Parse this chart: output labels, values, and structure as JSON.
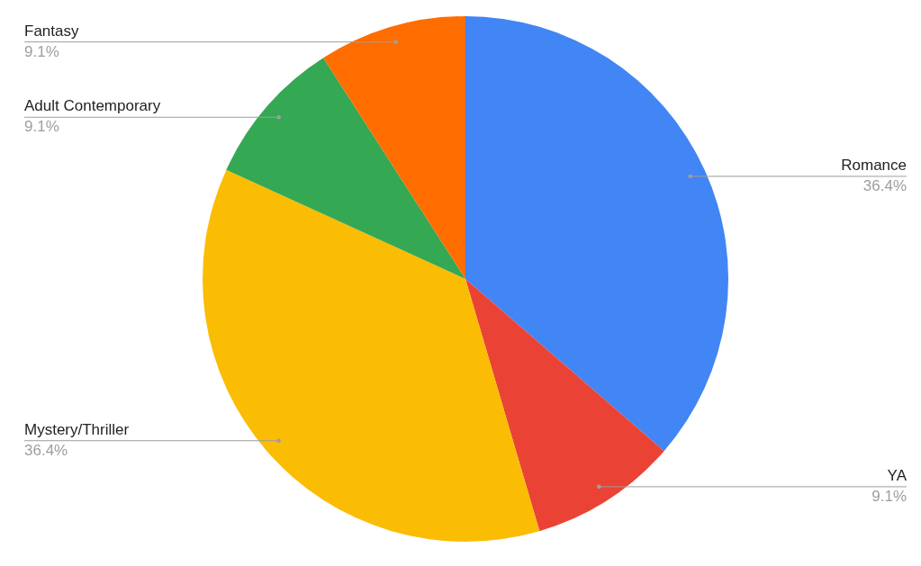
{
  "chart_data": {
    "type": "pie",
    "categories": [
      "Romance",
      "YA",
      "Mystery/Thriller",
      "Adult Contemporary",
      "Fantasy"
    ],
    "values": [
      36.4,
      9.1,
      36.4,
      9.1,
      9.1
    ],
    "colors": [
      "#4285f4",
      "#ea4335",
      "#fbbc04",
      "#34a853",
      "#ff6d01"
    ],
    "value_labels": [
      "36.4%",
      "9.1%",
      "36.4%",
      "9.1%",
      "9.1%"
    ]
  }
}
